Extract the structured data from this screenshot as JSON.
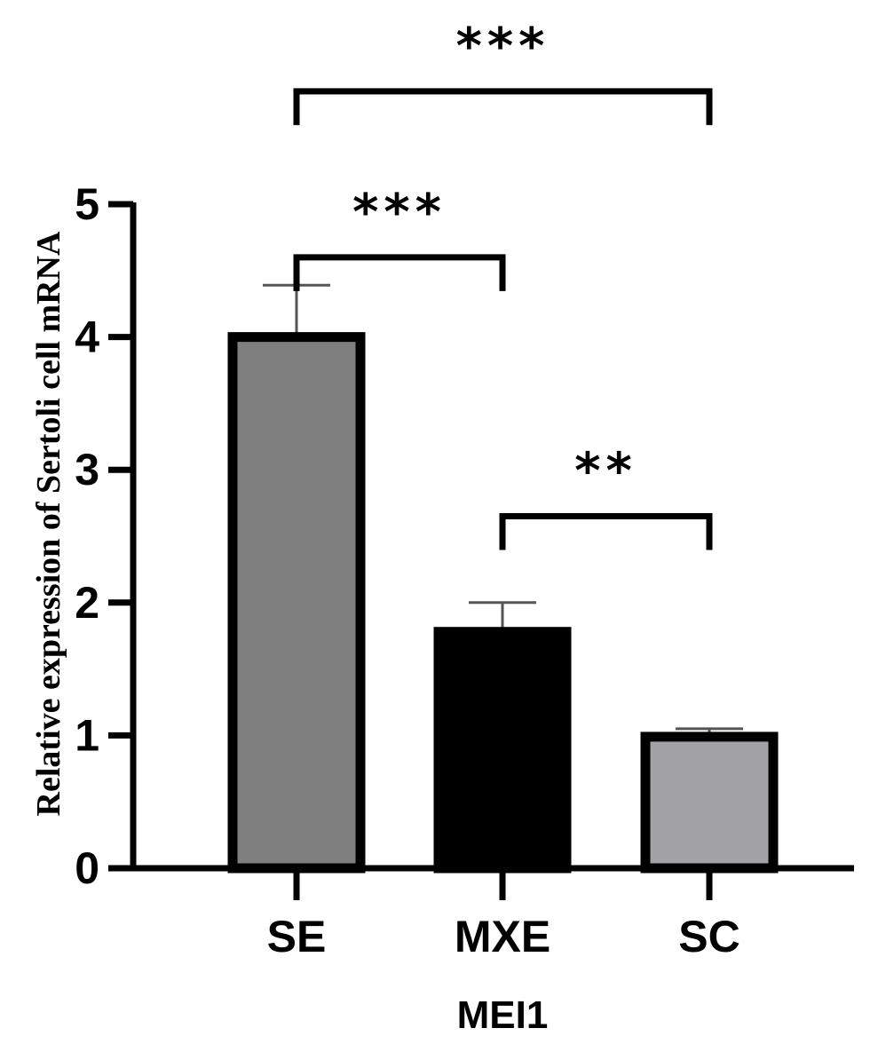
{
  "chart_data": {
    "type": "bar",
    "title": "",
    "xlabel": "MEI1",
    "ylabel": "Relative expression of Sertoli cell mRNA",
    "categories": [
      "SE",
      "MXE",
      "SC"
    ],
    "values": [
      4.0,
      1.78,
      0.99
    ],
    "errors": [
      0.39,
      0.22,
      0.06
    ],
    "bar_colors": [
      "#7f7f7f",
      "#000000",
      "#a3a3a7"
    ],
    "ylim": [
      0,
      5
    ],
    "yticks": [
      "0",
      "1",
      "2",
      "3",
      "4",
      "5"
    ],
    "grid": false,
    "significance": [
      {
        "from": "SE",
        "to": "MXE",
        "label": "***",
        "level": 4.6
      },
      {
        "from": "SE",
        "to": "SC",
        "label": "***",
        "level": 5.85
      },
      {
        "from": "MXE",
        "to": "SC",
        "label": "**",
        "level": 2.65
      }
    ]
  }
}
